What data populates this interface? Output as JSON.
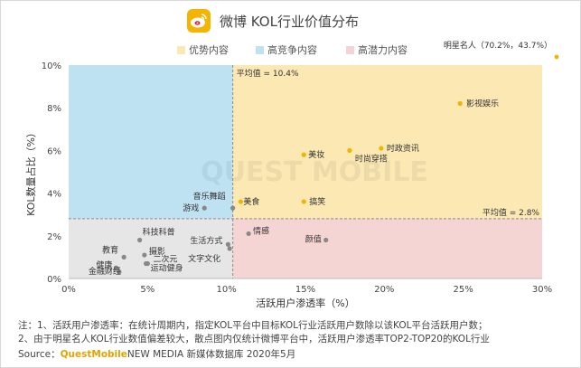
{
  "header": {
    "title": "微博 KOL行业价值分布",
    "logo_icon": "weibo-logo-icon"
  },
  "legend": [
    {
      "label": "优势内容",
      "color": "#fbe8b3"
    },
    {
      "label": "高竞争内容",
      "color": "#bfe2f3"
    },
    {
      "label": "高潜力内容",
      "color": "#f5d4d4"
    }
  ],
  "chart_data": {
    "type": "scatter",
    "title": "微博 KOL行业价值分布",
    "xlabel": "活跃用户渗透率（%）",
    "ylabel": "KOL数量占比（%）",
    "xlim": [
      0,
      30
    ],
    "ylim": [
      0,
      10
    ],
    "x_ticks": [
      "0%",
      "5%",
      "10%",
      "15%",
      "20%",
      "25%",
      "30%"
    ],
    "y_ticks": [
      "0%",
      "2%",
      "4%",
      "6%",
      "8%",
      "10%"
    ],
    "avg_x": {
      "value": 10.4,
      "label": "平均值 = 10.4%"
    },
    "avg_y": {
      "value": 2.8,
      "label": "平均值 = 2.8%"
    },
    "quadrant_colors": {
      "top_left": "#bfe2f3",
      "top_right": "#fbe8b3",
      "bottom_right": "#f5d4d4",
      "bottom_left": "#e6e6e6"
    },
    "point_colors": {
      "highlight": "#f2b400",
      "normal": "#888888"
    },
    "outlier": {
      "label": "明星名人（70.2%，43.7%）",
      "x": 70.2,
      "y": 43.7
    },
    "points": [
      {
        "label": "影视娱乐",
        "x": 24.8,
        "y": 8.2,
        "highlight": true
      },
      {
        "label": "时政资讯",
        "x": 19.8,
        "y": 6.1,
        "highlight": true
      },
      {
        "label": "时尚穿搭",
        "x": 17.8,
        "y": 6.0,
        "highlight": true
      },
      {
        "label": "美妆",
        "x": 14.9,
        "y": 5.8,
        "highlight": true
      },
      {
        "label": "美食",
        "x": 10.9,
        "y": 3.6,
        "highlight": true
      },
      {
        "label": "搞笑",
        "x": 14.9,
        "y": 3.6,
        "highlight": true
      },
      {
        "label": "音乐舞蹈",
        "x": 10.4,
        "y": 3.3,
        "highlight": false
      },
      {
        "label": "游戏",
        "x": 8.6,
        "y": 3.3,
        "highlight": false
      },
      {
        "label": "情感",
        "x": 11.4,
        "y": 2.1,
        "highlight": false
      },
      {
        "label": "颜值",
        "x": 16.3,
        "y": 1.8,
        "highlight": false
      },
      {
        "label": "生活方式",
        "x": 10.1,
        "y": 1.6,
        "highlight": false
      },
      {
        "label": "科技科普",
        "x": 4.5,
        "y": 1.8,
        "highlight": false
      },
      {
        "label": "教育",
        "x": 3.5,
        "y": 1.0,
        "highlight": false
      },
      {
        "label": "摄影",
        "x": 4.8,
        "y": 1.1,
        "highlight": false
      },
      {
        "label": "二次元",
        "x": 5.0,
        "y": 0.7,
        "highlight": false
      },
      {
        "label": "健康",
        "x": 3.0,
        "y": 0.5,
        "highlight": false
      },
      {
        "label": "金融财经",
        "x": 3.2,
        "y": 0.3,
        "highlight": false
      },
      {
        "label": "运动健身",
        "x": 4.9,
        "y": 0.7,
        "highlight": false
      },
      {
        "label": "文字文化",
        "x": 10.2,
        "y": 1.4,
        "highlight": false
      }
    ]
  },
  "footnotes": [
    "注：1、活跃用户渗透率：在统计周期内，指定KOL平台中目标KOL行业活跃用户数除以该KOL平台活跃用户数；",
    "2、由于明星名人KOL行业数值偏差较大，散点图内仅统计微博平台中，活跃用户渗透率TOP2-TOP20的KOL行业"
  ],
  "source": {
    "prefix": "Source：",
    "brand": "QuestMobile",
    "rest": "NEW MEDIA 新媒体数据库 2020年5月"
  },
  "watermark": "QUEST MOBILE"
}
